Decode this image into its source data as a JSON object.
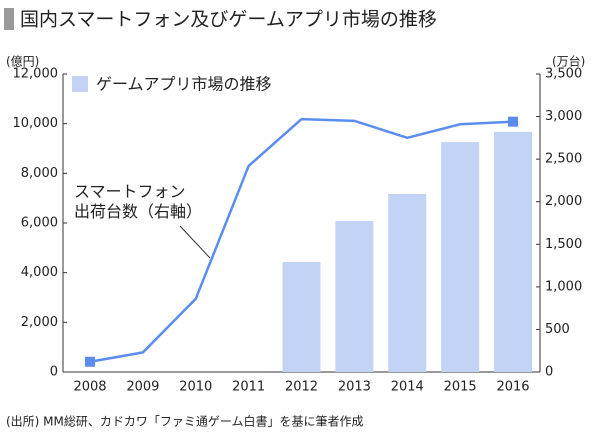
{
  "chart_data": {
    "type": "bar-line",
    "title": "国内スマートフォン及びゲームアプリ市場の推移",
    "y_label": "(億円)",
    "y2_label": "(万台)",
    "source": "(出所) MM総研、カドカワ「ファミ通ゲーム白書」を基に筆者作成",
    "categories": [
      "2008",
      "2009",
      "2010",
      "2011",
      "2012",
      "2013",
      "2014",
      "2015",
      "2016"
    ],
    "series": [
      {
        "name": "ゲームアプリ市場の推移",
        "type": "bar",
        "color": "#c3d3f6",
        "values": [
          null,
          null,
          null,
          null,
          4430,
          6080,
          7170,
          9260,
          9670
        ]
      },
      {
        "name": "スマートフォン\n出荷台数（右軸）",
        "type": "line",
        "axis": "y2",
        "color": "#5b8def",
        "marker_points": [
          0,
          8
        ],
        "values": [
          120,
          230,
          860,
          2420,
          2970,
          2950,
          2750,
          2910,
          2940
        ]
      }
    ],
    "ylim": [
      0,
      12000
    ],
    "yticks": [
      0,
      {
        "value": 2000,
        "label": "2,000"
      },
      {
        "value": 4000,
        "label": "4,000"
      },
      {
        "value": 6000,
        "label": "6,000"
      },
      {
        "value": 8000,
        "label": "8,000"
      },
      {
        "value": 10000,
        "label": "10,000"
      },
      {
        "value": 12000,
        "label": "12,000"
      }
    ],
    "y2lim": [
      0,
      3500
    ],
    "y2ticks": [
      0,
      500,
      {
        "value": 1000,
        "label": "1,000"
      },
      {
        "value": 1500,
        "label": "1,500"
      },
      {
        "value": 2000,
        "label": "2,000"
      },
      {
        "value": 2500,
        "label": "2,500"
      },
      {
        "value": 3000,
        "label": "3,000"
      },
      {
        "value": 3500,
        "label": "3,500"
      }
    ],
    "grid": false
  }
}
